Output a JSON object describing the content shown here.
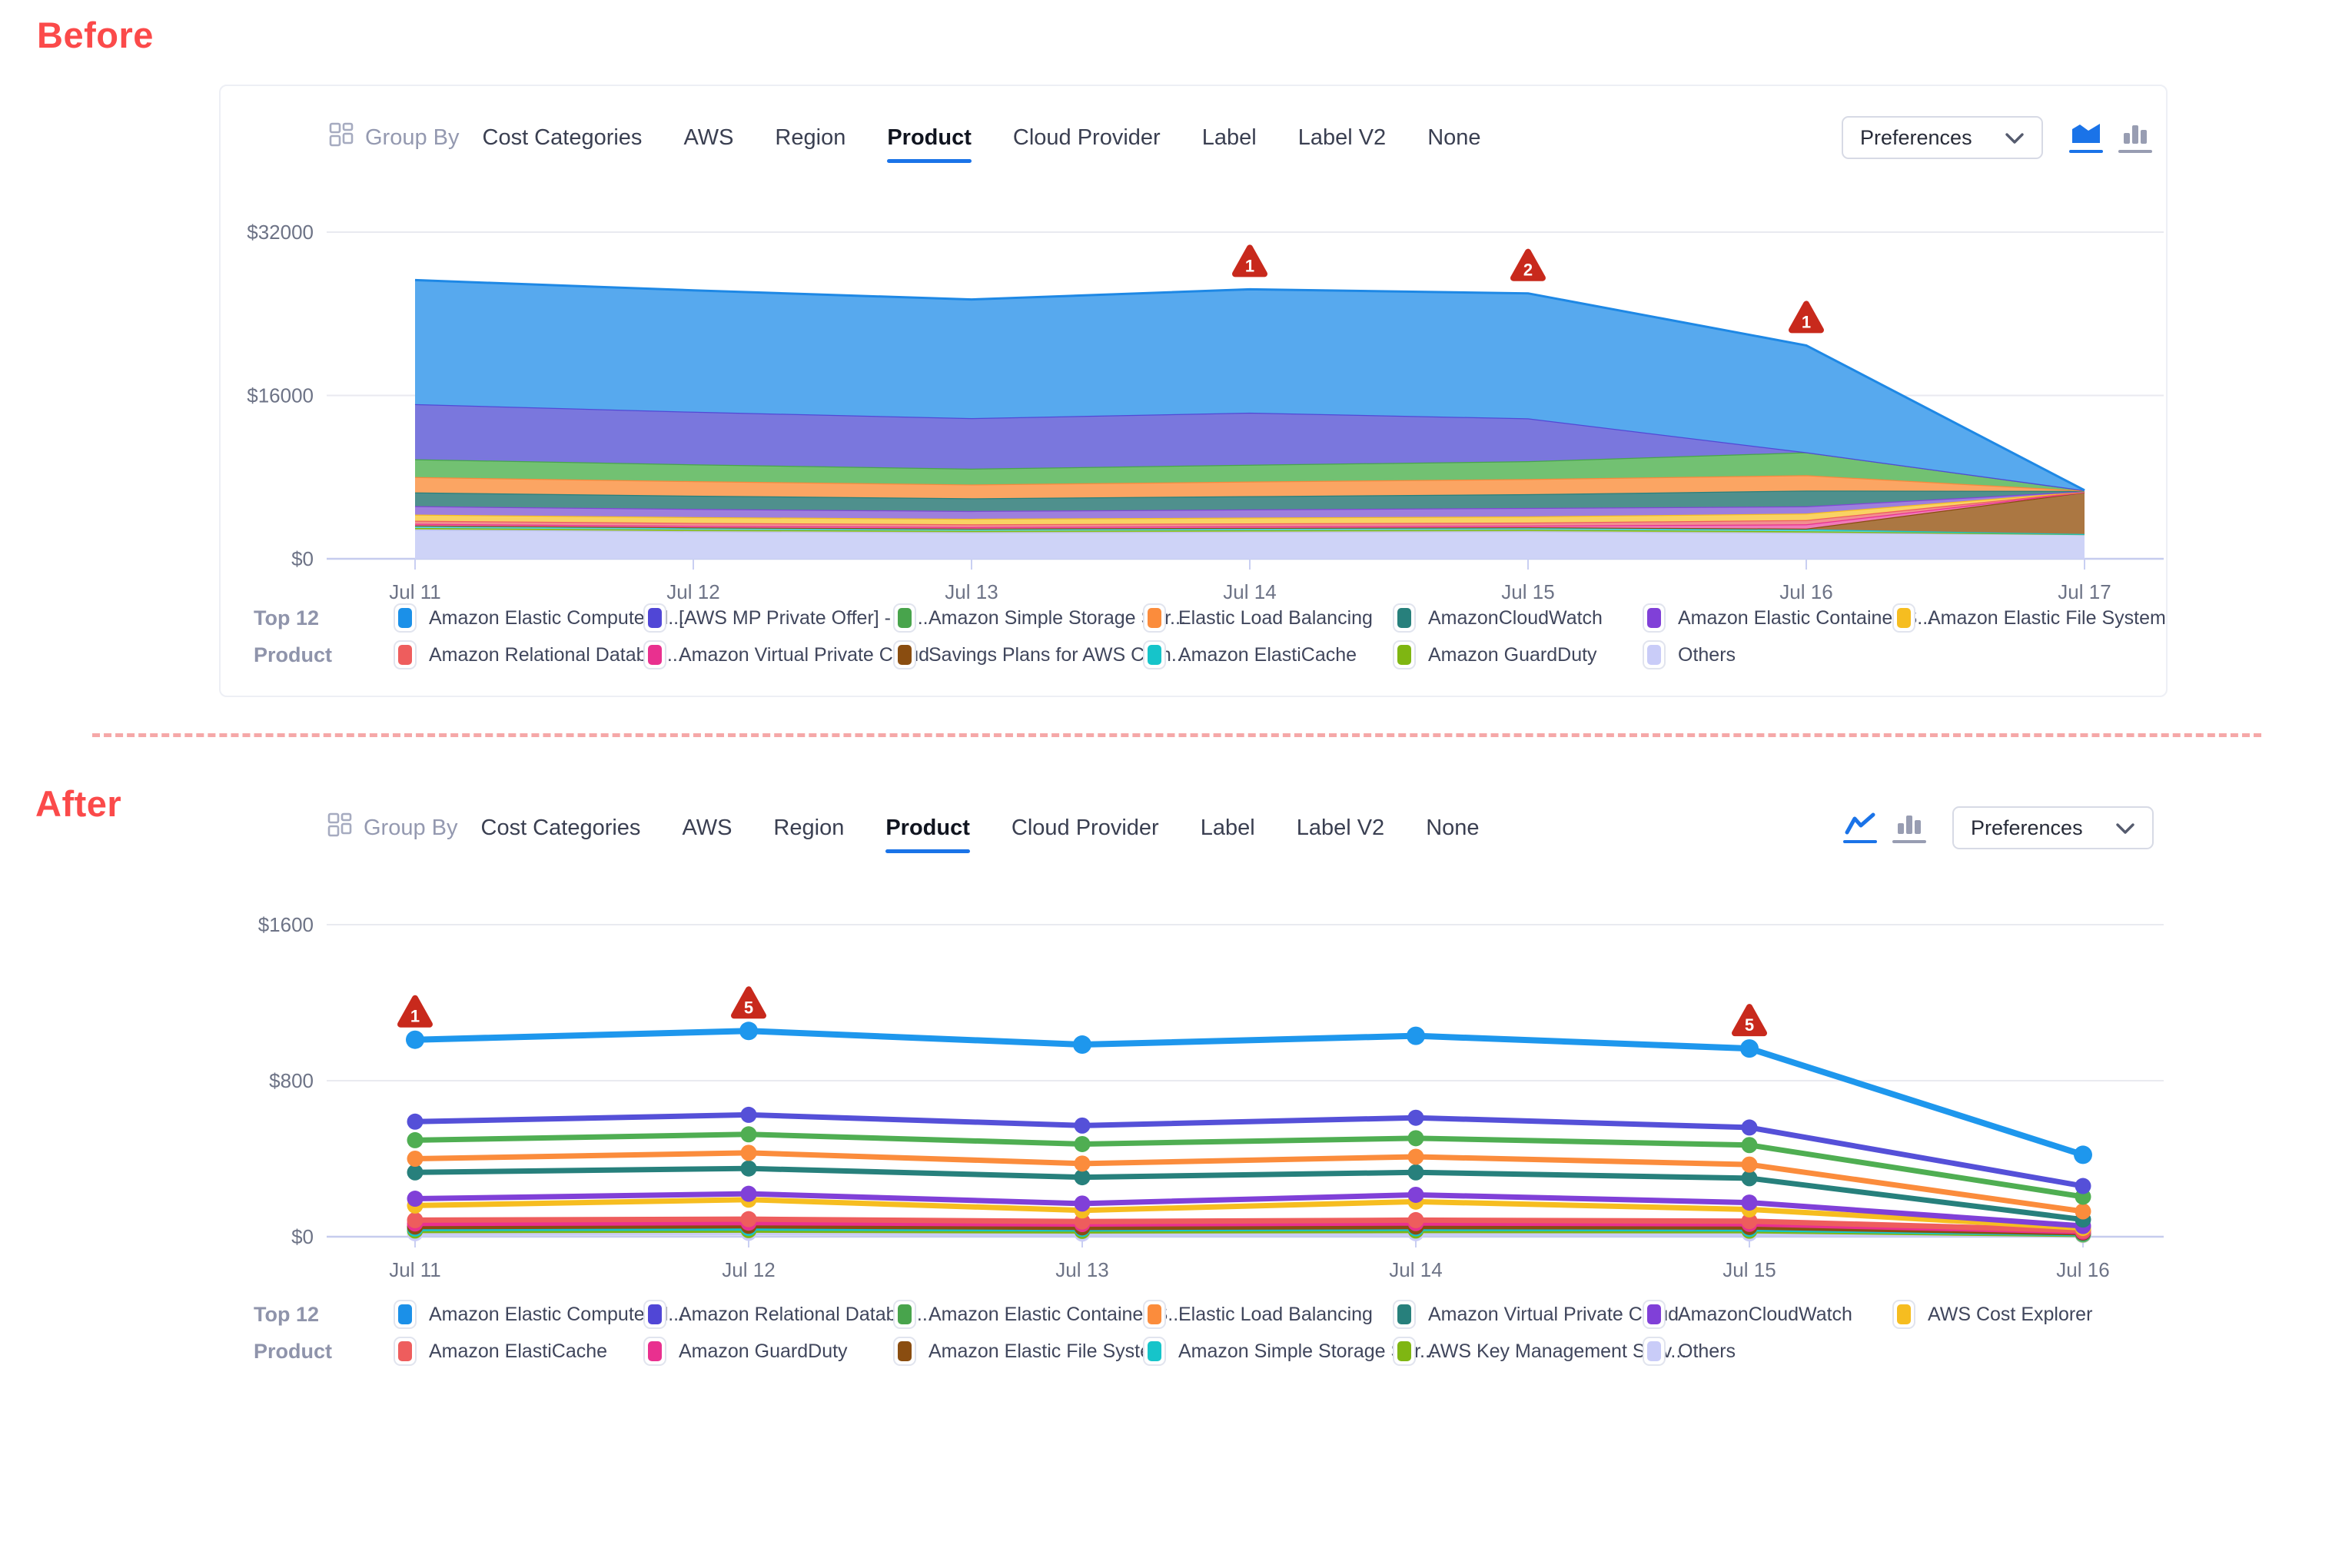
{
  "labels": {
    "before": "Before",
    "after": "After"
  },
  "accent": {
    "section_label_red": "#fb4a4a",
    "active_tab_underline": "#1a73e8",
    "alert_red": "#c8291c",
    "divider_pink": "#f5a8a8"
  },
  "toolbar": {
    "group_by_label": "Group By",
    "tabs": [
      "Cost Categories",
      "AWS",
      "Region",
      "Product",
      "Cloud Provider",
      "Label",
      "Label V2",
      "None"
    ],
    "active_tab": "Product",
    "preferences_label": "Preferences"
  },
  "legend_title": {
    "line1": "Top 12",
    "line2": "Product"
  },
  "before": {
    "view_toggle": {
      "active_icon": "area-chart",
      "inactive_icon": "bar-chart"
    },
    "legend_rows": [
      [
        {
          "label": "Amazon Elastic Compute Cl...",
          "color": "#1b90e8"
        },
        {
          "label": "[AWS MP Private Offer] - M...",
          "color": "#5046d6"
        },
        {
          "label": "Amazon Simple Storage Ser...",
          "color": "#48a44c"
        },
        {
          "label": "Elastic Load Balancing",
          "color": "#fb8c3c"
        },
        {
          "label": "AmazonCloudWatch",
          "color": "#27807c"
        },
        {
          "label": "Amazon Elastic Container S...",
          "color": "#8040d8"
        },
        {
          "label": "Amazon Elastic File System",
          "color": "#f6bd20"
        }
      ],
      [
        {
          "label": "Amazon Relational Databas...",
          "color": "#ee5d5d"
        },
        {
          "label": "Amazon Virtual Private Cloud",
          "color": "#e9308f"
        },
        {
          "label": "Savings Plans for AWS Com...",
          "color": "#8a4d10"
        },
        {
          "label": "Amazon ElastiCache",
          "color": "#16c4ca"
        },
        {
          "label": "Amazon GuardDuty",
          "color": "#7fb612"
        },
        {
          "label": "Others",
          "color": "#c9ccf8"
        }
      ]
    ],
    "chart_data": {
      "type": "area",
      "stacked": true,
      "x": [
        "Jul 11",
        "Jul 12",
        "Jul 13",
        "Jul 14",
        "Jul 15",
        "Jul 16",
        "Jul 17"
      ],
      "yticks": [
        {
          "v": 0,
          "label": "$0"
        },
        {
          "v": 16000,
          "label": "$16000"
        },
        {
          "v": 32000,
          "label": "$32000"
        }
      ],
      "ylim": [
        0,
        32000
      ],
      "series": [
        {
          "name": "others",
          "label": "Others",
          "fill": "#ced3f7",
          "stroke": "#b9bff0",
          "values": [
            2870,
            2700,
            2600,
            2650,
            2700,
            2550,
            2400
          ]
        },
        {
          "name": "guardduty",
          "label": "Amazon GuardDuty",
          "fill": "#a8cb56",
          "stroke": "#7fb612",
          "values": [
            150,
            145,
            140,
            145,
            150,
            140,
            10
          ]
        },
        {
          "name": "elasticache",
          "label": "Amazon ElastiCache",
          "fill": "#5dd3d6",
          "stroke": "#16c4ca",
          "values": [
            220,
            210,
            200,
            210,
            215,
            205,
            15
          ]
        },
        {
          "name": "savings-plans",
          "label": "Savings Plans for AWS Com...",
          "fill": "#ab7742",
          "stroke": "#8a4d10",
          "values": [
            25,
            25,
            25,
            25,
            25,
            60,
            4100
          ]
        },
        {
          "name": "vpc",
          "label": "Amazon Virtual Private Cloud",
          "fill": "#f07ab8",
          "stroke": "#e9308f",
          "values": [
            160,
            150,
            145,
            150,
            160,
            420,
            20
          ]
        },
        {
          "name": "rds",
          "label": "Amazon Relational Databas...",
          "fill": "#f28f8f",
          "stroke": "#ee5d5d",
          "values": [
            300,
            285,
            270,
            285,
            300,
            420,
            20
          ]
        },
        {
          "name": "efs",
          "label": "Amazon Elastic File System",
          "fill": "#f9d263",
          "stroke": "#f6bd20",
          "values": [
            600,
            570,
            540,
            570,
            600,
            640,
            25
          ]
        },
        {
          "name": "ecs",
          "label": "Amazon Elastic Container S...",
          "fill": "#9d7fdd",
          "stroke": "#8047d6",
          "values": [
            830,
            800,
            760,
            800,
            830,
            700,
            25
          ]
        },
        {
          "name": "cloudwatch",
          "label": "AmazonCloudWatch",
          "fill": "#4f908d",
          "stroke": "#27807c",
          "values": [
            1350,
            1300,
            1250,
            1300,
            1350,
            1550,
            30
          ]
        },
        {
          "name": "elb",
          "label": "Elastic Load Balancing",
          "fill": "#fba563",
          "stroke": "#f9883c",
          "values": [
            1500,
            1420,
            1350,
            1430,
            1480,
            1500,
            30
          ]
        },
        {
          "name": "s3",
          "label": "Amazon Simple Storage Ser...",
          "fill": "#72c172",
          "stroke": "#48a44c",
          "values": [
            1750,
            1650,
            1550,
            1650,
            1750,
            2250,
            40
          ]
        },
        {
          "name": "mp-private-offer",
          "label": "[AWS MP Private Offer] - M...",
          "fill": "#7a77dd",
          "stroke": "#5149d6",
          "values": [
            5400,
            5150,
            4950,
            5100,
            4200,
            0,
            0
          ]
        },
        {
          "name": "ec2",
          "label": "Amazon Elastic Compute Cl...",
          "fill": "#57a9ee",
          "stroke": "#1e88e5",
          "values": [
            12145,
            11895,
            11620,
            12085,
            12240,
            10465,
            0
          ]
        }
      ],
      "alerts": [
        {
          "x": "Jul 14",
          "count": "1"
        },
        {
          "x": "Jul 15",
          "count": "2"
        },
        {
          "x": "Jul 16",
          "count": "1"
        }
      ]
    }
  },
  "after": {
    "view_toggle": {
      "active_icon": "line-chart",
      "inactive_icon": "bar-chart"
    },
    "legend_rows": [
      [
        {
          "label": "Amazon Elastic Compute Cl...",
          "color": "#1b90e8"
        },
        {
          "label": "Amazon Relational Databas...",
          "color": "#5046d6"
        },
        {
          "label": "Amazon Elastic Container S...",
          "color": "#48a44c"
        },
        {
          "label": "Elastic Load Balancing",
          "color": "#fb8c3c"
        },
        {
          "label": "Amazon Virtual Private Cloud",
          "color": "#27807c"
        },
        {
          "label": "AmazonCloudWatch",
          "color": "#8040d8"
        },
        {
          "label": "AWS Cost Explorer",
          "color": "#f6bd20"
        }
      ],
      [
        {
          "label": "Amazon ElastiCache",
          "color": "#ee5d5d"
        },
        {
          "label": "Amazon GuardDuty",
          "color": "#e9308f"
        },
        {
          "label": "Amazon Elastic File System",
          "color": "#8a4d10"
        },
        {
          "label": "Amazon Simple Storage Ser...",
          "color": "#16c4ca"
        },
        {
          "label": "AWS Key Management Serv...",
          "color": "#7fb612"
        },
        {
          "label": "Others",
          "color": "#c9ccf8"
        }
      ]
    ],
    "chart_data": {
      "type": "line",
      "x": [
        "Jul 11",
        "Jul 12",
        "Jul 13",
        "Jul 14",
        "Jul 15",
        "Jul 16"
      ],
      "yticks": [
        {
          "v": 0,
          "label": "$0"
        },
        {
          "v": 800,
          "label": "$800"
        },
        {
          "v": 1600,
          "label": "$1600"
        }
      ],
      "ylim": [
        0,
        1600
      ],
      "series": [
        {
          "name": "ec2",
          "label": "Amazon Elastic Compute Cl...",
          "color": "#1e97ed",
          "values": [
            1010,
            1055,
            985,
            1030,
            965,
            420
          ]
        },
        {
          "name": "rds",
          "label": "Amazon Relational Databas...",
          "color": "#5550d8",
          "values": [
            590,
            625,
            570,
            610,
            560,
            260
          ]
        },
        {
          "name": "ecs",
          "label": "Amazon Elastic Container S...",
          "color": "#4fae52",
          "values": [
            495,
            525,
            475,
            505,
            470,
            205
          ]
        },
        {
          "name": "elb",
          "label": "Elastic Load Balancing",
          "color": "#fb8c3c",
          "values": [
            400,
            430,
            375,
            410,
            370,
            130
          ]
        },
        {
          "name": "vpc",
          "label": "Amazon Virtual Private Cloud",
          "color": "#27807c",
          "values": [
            330,
            350,
            305,
            330,
            300,
            88
          ]
        },
        {
          "name": "cloudwatch",
          "label": "AmazonCloudWatch",
          "color": "#8040d8",
          "values": [
            195,
            220,
            170,
            215,
            175,
            55
          ]
        },
        {
          "name": "cost-explorer",
          "label": "AWS Cost Explorer",
          "color": "#f6bd20",
          "values": [
            160,
            190,
            135,
            180,
            140,
            45
          ]
        },
        {
          "name": "elasticache",
          "label": "Amazon ElastiCache",
          "color": "#ee5d5d",
          "values": [
            85,
            90,
            78,
            85,
            80,
            32
          ]
        },
        {
          "name": "guardduty",
          "label": "Amazon GuardDuty",
          "color": "#e9308f",
          "values": [
            68,
            72,
            65,
            70,
            66,
            26
          ]
        },
        {
          "name": "efs",
          "label": "Amazon Elastic File System",
          "color": "#8a4d10",
          "values": [
            52,
            56,
            48,
            52,
            50,
            20
          ]
        },
        {
          "name": "s3",
          "label": "Amazon Simple Storage Ser...",
          "color": "#16c4ca",
          "values": [
            42,
            45,
            40,
            43,
            40,
            16
          ]
        },
        {
          "name": "kms",
          "label": "AWS Key Management Serv...",
          "color": "#7fb612",
          "values": [
            32,
            34,
            30,
            32,
            31,
            12
          ]
        },
        {
          "name": "others",
          "label": "Others",
          "color": "#c9ccf6",
          "values": [
            18,
            20,
            16,
            18,
            17,
            8
          ]
        }
      ],
      "alerts": [
        {
          "x": "Jul 11",
          "count": "1"
        },
        {
          "x": "Jul 12",
          "count": "5"
        },
        {
          "x": "Jul 15",
          "count": "5"
        }
      ]
    }
  }
}
